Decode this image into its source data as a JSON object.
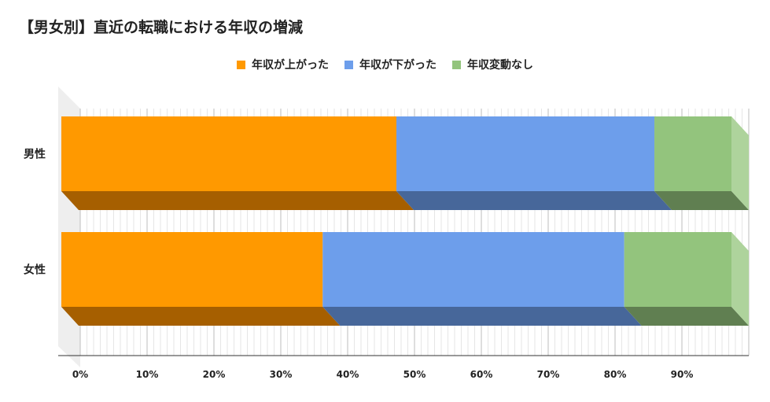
{
  "chart_data": {
    "type": "bar",
    "orientation": "horizontal",
    "stacked": true,
    "style": "3d",
    "title": "【男女別】直近の転職における年収の増減",
    "categories": [
      "男性",
      "女性"
    ],
    "series": [
      {
        "name": "年収が上がった",
        "values": [
          50.0,
          39.0
        ],
        "color": "#ff9900",
        "shade": "#a65f00"
      },
      {
        "name": "年収が下がった",
        "values": [
          38.5,
          45.0
        ],
        "color": "#6d9eeb",
        "shade": "#47679a"
      },
      {
        "name": "年収変動なし",
        "values": [
          11.5,
          16.0
        ],
        "color": "#93c47d",
        "shade": "#607f51"
      }
    ],
    "x_ticks": [
      "0%",
      "10%",
      "20%",
      "30%",
      "40%",
      "50%",
      "60%",
      "70%",
      "80%",
      "90%"
    ],
    "xlim": [
      0,
      100
    ],
    "legend_position": "top",
    "grid": true
  }
}
